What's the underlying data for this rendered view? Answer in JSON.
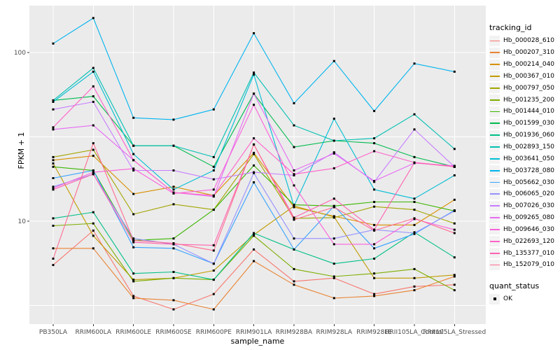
{
  "figure": {
    "background": "#FFFFFF",
    "panel_background": "#EBEBEB",
    "gridline_color": "#FFFFFF",
    "tick_label_color": "#4D4D4D",
    "tick_mark_color": "#333333",
    "axis_title_color": "#000000",
    "point_color": "#000000",
    "legend_key_background": "#F2F2F2"
  },
  "chart_data": {
    "type": "line",
    "title": "",
    "xlabel": "sample_name",
    "ylabel": "FPKM + 1",
    "y_scale": "log10",
    "grid": true,
    "legend_position": "right",
    "marker": "black-square",
    "y_tick_labels": [
      "100",
      "10"
    ],
    "y_tick_values": [
      100,
      10
    ],
    "y_minor_values": [
      31.62,
      3.162
    ],
    "ylim": [
      2.48,
      190
    ],
    "categories": [
      "PB350LA",
      "RRIM600LA",
      "RRIM600LE",
      "RRIM600SE",
      "RRIM600PE",
      "RRIM901LA",
      "RRIM928BA",
      "RRIM928LA",
      "RRIM928LE",
      "RRII105LA_Control",
      "RRII105LA_Stressed"
    ],
    "legend_title": "tracking_id",
    "legend2_title": "quant_status",
    "legend2_items": [
      {
        "label": "OK",
        "marker": "black-square"
      }
    ],
    "series": [
      {
        "name": "Hb_000028_610",
        "color": "#F8766D",
        "values": [
          5.5,
          8.8,
          3.6,
          3.0,
          3.7,
          6.8,
          4.4,
          4.6,
          3.7,
          4.1,
          4.2
        ]
      },
      {
        "name": "Hb_000207_310",
        "color": "#EA8331",
        "values": [
          6.9,
          6.9,
          3.5,
          3.4,
          3.0,
          5.8,
          4.2,
          3.5,
          3.6,
          3.9,
          4.7
        ]
      },
      {
        "name": "Hb_000214_040",
        "color": "#D89000",
        "values": [
          23,
          24.4,
          14.5,
          16,
          14.2,
          25.4,
          12.1,
          10.7,
          9.5,
          9.5,
          13.4
        ]
      },
      {
        "name": "Hb_000367_010",
        "color": "#C09B00",
        "values": [
          22,
          8.2,
          4.5,
          4.6,
          5.1,
          8.3,
          12.3,
          10.6,
          4.6,
          4.6,
          4.8
        ]
      },
      {
        "name": "Hb_000797_050",
        "color": "#A3A500",
        "values": [
          24,
          26.5,
          11,
          12.6,
          11.7,
          25,
          10.4,
          10.5,
          12.2,
          11.7,
          9.7
        ]
      },
      {
        "name": "Hb_001235_200",
        "color": "#7CAE00",
        "values": [
          9.4,
          9.7,
          4.4,
          4.6,
          4.5,
          8.2,
          5.2,
          4.7,
          4.9,
          5.2,
          3.9
        ]
      },
      {
        "name": "Hb_001444_010",
        "color": "#39B600",
        "values": [
          21,
          20,
          7.7,
          7.9,
          11.7,
          21.4,
          12.5,
          12.3,
          13,
          13,
          11.5
        ]
      },
      {
        "name": "Hb_001599_030",
        "color": "#00BB4E",
        "values": [
          52,
          55,
          28,
          28,
          21,
          57,
          27.5,
          30,
          29,
          24,
          21
        ]
      },
      {
        "name": "Hb_001936_060",
        "color": "#00C087",
        "values": [
          10.4,
          11.3,
          4.9,
          5.0,
          4.5,
          8.5,
          6.8,
          5.6,
          6.0,
          8.6,
          6.1
        ]
      },
      {
        "name": "Hb_002893_150",
        "color": "#00C0B2",
        "values": [
          52,
          81,
          28,
          28,
          24,
          76,
          37,
          30,
          31,
          43,
          26.8
        ]
      },
      {
        "name": "Hb_003641_050",
        "color": "#00BDD4",
        "values": [
          51,
          77,
          25,
          15.4,
          20,
          74,
          12.3,
          40.5,
          15.4,
          13.6,
          18.7
        ]
      },
      {
        "name": "Hb_003728_080",
        "color": "#00B4EF",
        "values": [
          113,
          160,
          41,
          40,
          46,
          130,
          50,
          89,
          45,
          86,
          77
        ]
      },
      {
        "name": "Hb_005662_030",
        "color": "#35A2FF",
        "values": [
          18,
          20,
          7.0,
          6.9,
          5.6,
          17,
          6.8,
          12.3,
          6.9,
          8.4,
          11.6
        ]
      },
      {
        "name": "Hb_006065_020",
        "color": "#9590FF",
        "values": [
          16,
          19,
          7.9,
          7.3,
          5.6,
          19.3,
          7.9,
          7.9,
          8.9,
          8.5,
          11.5
        ]
      },
      {
        "name": "Hb_007026_030",
        "color": "#C77CFF",
        "values": [
          46,
          51,
          20,
          20,
          17.7,
          19.5,
          18.7,
          25.6,
          17.1,
          35,
          21
        ]
      },
      {
        "name": "Hb_009265_080",
        "color": "#E76BF3",
        "values": [
          35,
          37,
          23,
          14.8,
          14.0,
          57,
          20,
          25.2,
          17.3,
          22.1,
          21.3
        ]
      },
      {
        "name": "Hb_009646_030",
        "color": "#FA62DB",
        "values": [
          15.7,
          19.5,
          20.5,
          14.6,
          15.4,
          49,
          16.3,
          7.3,
          7.3,
          10.3,
          8.9
        ]
      },
      {
        "name": "Hb_022693_120",
        "color": "#FF61C9",
        "values": [
          36,
          63,
          23,
          14.8,
          14.2,
          31,
          19,
          20.6,
          26,
          22.3,
          21.1
        ]
      },
      {
        "name": "Hb_135377_010",
        "color": "#FF62B0",
        "values": [
          15.4,
          19,
          7.5,
          7.3,
          7.2,
          28.5,
          10.5,
          13.6,
          8.9,
          22.2,
          21
        ]
      },
      {
        "name": "Hb_152079_010",
        "color": "#FF6B91",
        "values": [
          6.0,
          29,
          7.7,
          7.4,
          6.7,
          28.5,
          10.2,
          12.1,
          8.8,
          10.4,
          8.5
        ]
      }
    ]
  }
}
